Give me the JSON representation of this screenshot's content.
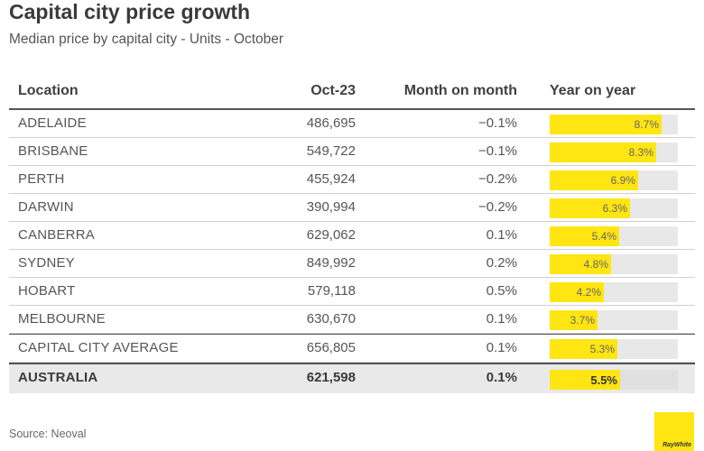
{
  "title": "Capital city price growth",
  "subtitle": "Median price by capital city - Units - October",
  "source": "Source: Neoval",
  "logo_text": "RayWhite",
  "colors": {
    "bar": "#ffe512",
    "bar_track": "#e8e8e8",
    "total_row_bg": "#e9e9e9"
  },
  "chart_data": {
    "type": "table",
    "columns": [
      "Location",
      "Oct-23",
      "Month on month",
      "Year on year"
    ],
    "yoy_scale_max": 10,
    "rows": [
      {
        "location": "ADELAIDE",
        "value": "486,695",
        "mom": "−0.1%",
        "yoy": 8.7,
        "yoy_label": "8.7%"
      },
      {
        "location": "BRISBANE",
        "value": "549,722",
        "mom": "−0.1%",
        "yoy": 8.3,
        "yoy_label": "8.3%"
      },
      {
        "location": "PERTH",
        "value": "455,924",
        "mom": "−0.2%",
        "yoy": 6.9,
        "yoy_label": "6.9%"
      },
      {
        "location": "DARWIN",
        "value": "390,994",
        "mom": "−0.2%",
        "yoy": 6.3,
        "yoy_label": "6.3%"
      },
      {
        "location": "CANBERRA",
        "value": "629,062",
        "mom": "0.1%",
        "yoy": 5.4,
        "yoy_label": "5.4%"
      },
      {
        "location": "SYDNEY",
        "value": "849,992",
        "mom": "0.2%",
        "yoy": 4.8,
        "yoy_label": "4.8%"
      },
      {
        "location": "HOBART",
        "value": "579,118",
        "mom": "0.5%",
        "yoy": 4.2,
        "yoy_label": "4.2%"
      },
      {
        "location": "MELBOURNE",
        "value": "630,670",
        "mom": "0.1%",
        "yoy": 3.7,
        "yoy_label": "3.7%"
      },
      {
        "location": "CAPITAL CITY AVERAGE",
        "value": "656,805",
        "mom": "0.1%",
        "yoy": 5.3,
        "yoy_label": "5.3%"
      },
      {
        "location": "AUSTRALIA",
        "value": "621,598",
        "mom": "0.1%",
        "yoy": 5.5,
        "yoy_label": "5.5%"
      }
    ]
  }
}
